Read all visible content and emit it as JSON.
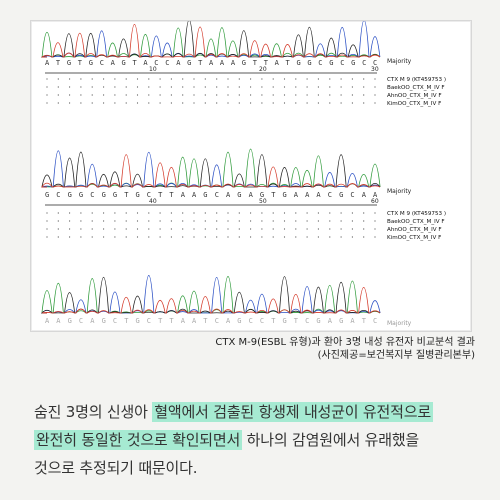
{
  "figure": {
    "panel1": {
      "sequence": "ATGTGCAGTACCAGTAAAGTTATGGCGCGCC",
      "ticks": [
        "10",
        "20",
        "30"
      ],
      "majority_label": "Majority",
      "sample_labels": [
        "CTX M 9 (KT459753 )",
        "BaekOO_CTX_M_IV F",
        "AhnOO_CTX_M_IV F",
        "KimOO_CTX_M_IV F"
      ]
    },
    "panel2": {
      "sequence": "GCGGCGGTGCTTAAGCAGAGTGAAACGCAA",
      "ticks": [
        "40",
        "50",
        "60"
      ],
      "majority_label": "Majority",
      "sample_labels": [
        "CTX M 9 (KT459753 )",
        "BaekOO_CTX_M_IV F",
        "AhnOO_CTX_M_IV F",
        "KimOO_CTX_M_IV F"
      ]
    },
    "panel3": {
      "bottom_sequence": "AAGCAGCTGCTTAATCAGCCTGTCGAGATC",
      "majority_label": "Majority"
    }
  },
  "caption": {
    "line1": "CTX M-9(ESBL 유형)과 환아 3명 내성 유전자 비교분석 결과",
    "line2": "(사진제공=보건복지부 질병관리본부)"
  },
  "body": {
    "t1": "숨진 3명의 신생아 ",
    "h1": "혈액에서 검출된 항생제 내성균이 유전적으로",
    "h2": "완전히 동일한 것으로 확인되면서",
    "t2": " 하나의 감염원에서 유래했을",
    "t3": "것으로 추정되기 때문이다."
  }
}
